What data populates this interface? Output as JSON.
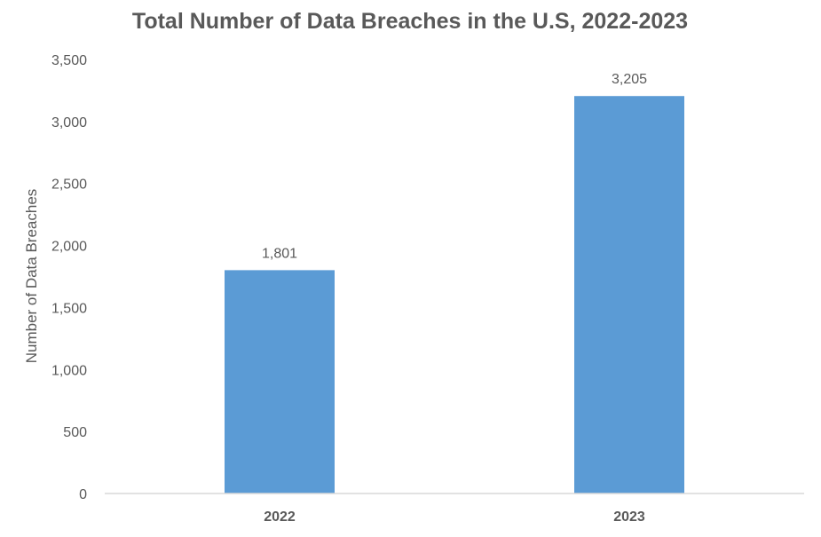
{
  "chart_data": {
    "type": "bar",
    "title": "Total Number of Data Breaches in the U.S, 2022-2023",
    "xlabel": "",
    "ylabel": "Number of Data Breaches",
    "categories": [
      "2022",
      "2023"
    ],
    "values": [
      1801,
      3205
    ],
    "data_labels": [
      "1,801",
      "3,205"
    ],
    "ylim": [
      0,
      3500
    ],
    "yticks": [
      0,
      500,
      1000,
      1500,
      2000,
      2500,
      3000,
      3500
    ],
    "ytick_labels": [
      "0",
      "500",
      "1,000",
      "1,500",
      "2,000",
      "2,500",
      "3,000",
      "3,500"
    ],
    "grid": false,
    "legend": "none",
    "colors": {
      "bar": "#5B9BD5",
      "text": "#595959",
      "axis": "#D9D9D9"
    }
  }
}
